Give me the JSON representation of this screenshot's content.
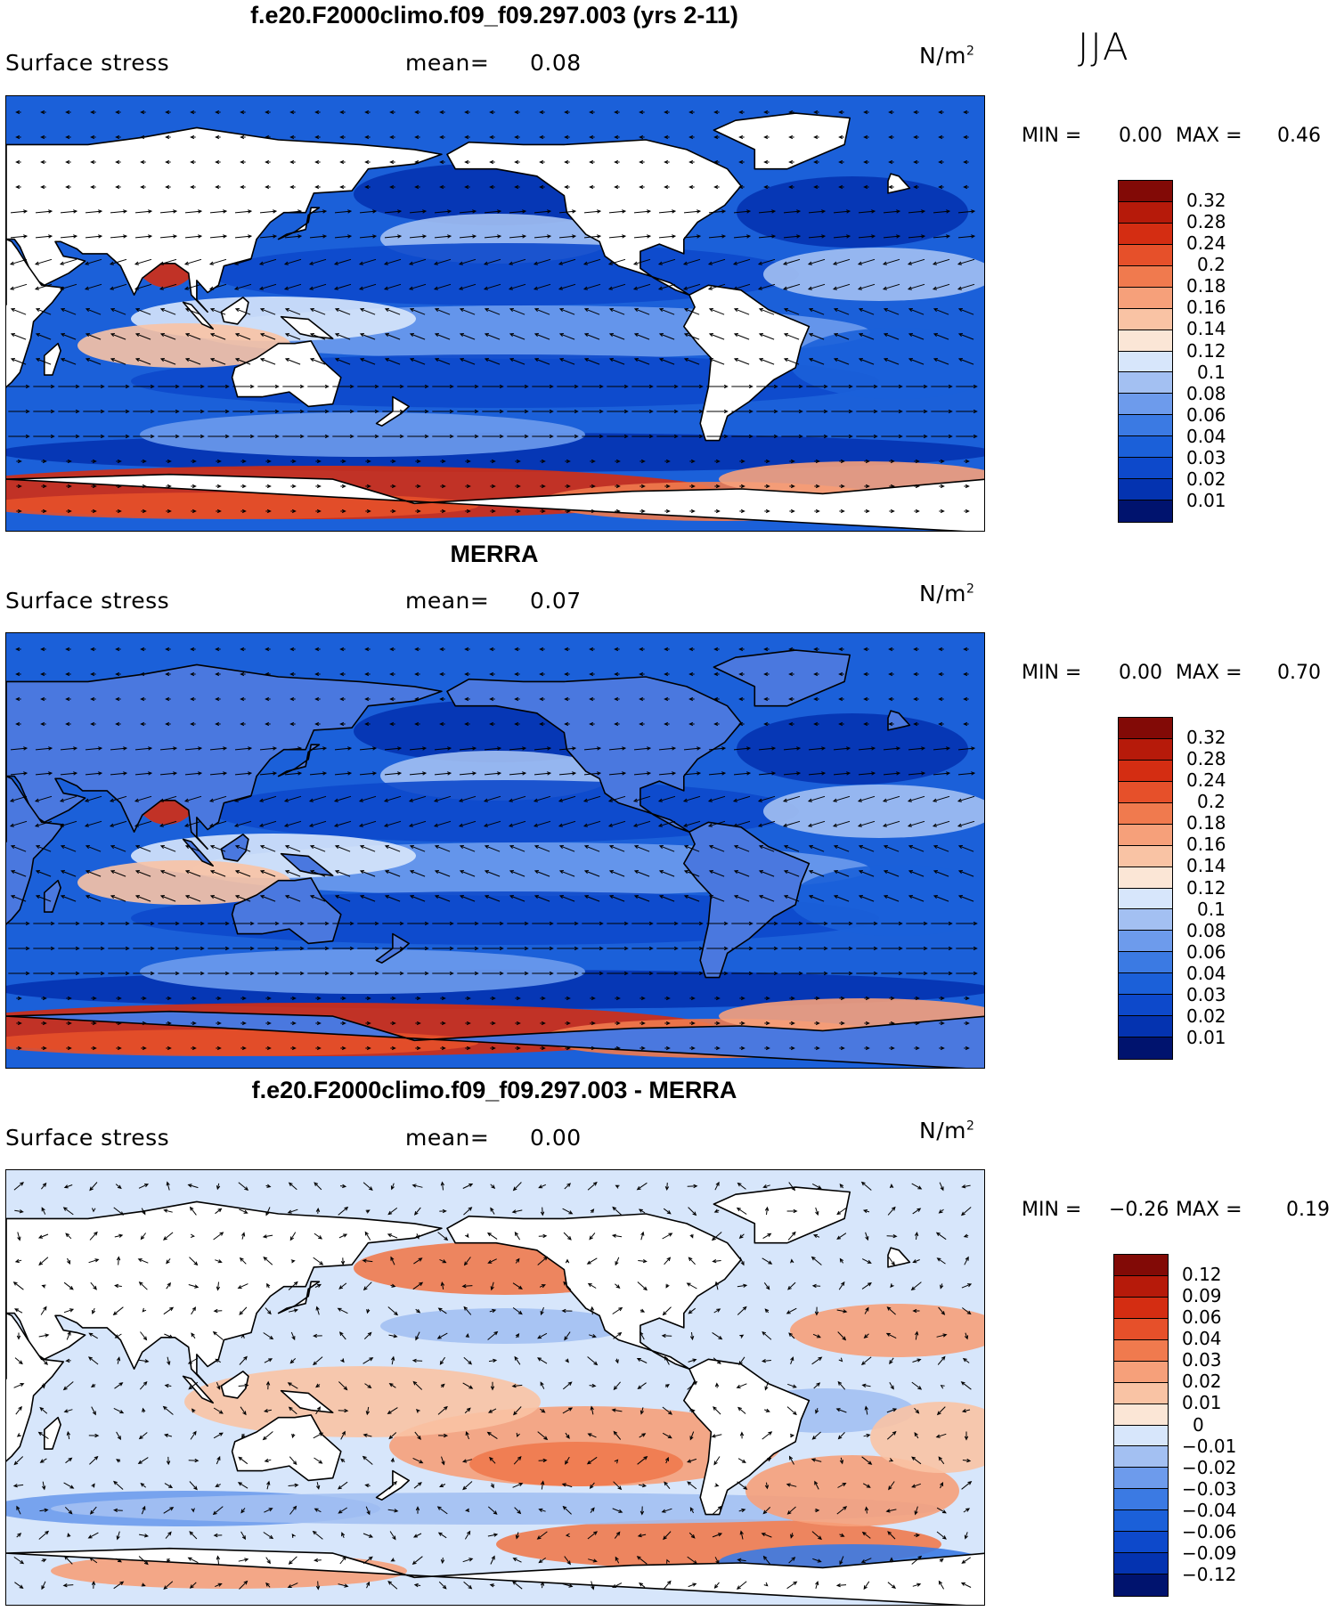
{
  "season": "JJA",
  "colors": {
    "seq": [
      "#00136e",
      "#0433b0",
      "#0d49cb",
      "#1b60d9",
      "#3b7ae3",
      "#6d9bec",
      "#a3c0f2",
      "#d7e6fb",
      "#fbe6d6",
      "#f9c3a4",
      "#f6a07a",
      "#f07a4e",
      "#e6502a",
      "#d42d12",
      "#b61a0a",
      "#820a06"
    ],
    "diff": [
      "#00136e",
      "#0433b0",
      "#0d49cb",
      "#1b60d9",
      "#3b7ae3",
      "#6d9bec",
      "#a3c0f2",
      "#d7e6fb",
      "#fbe6d6",
      "#f9c3a4",
      "#f6a07a",
      "#f07a4e",
      "#e6502a",
      "#d42d12",
      "#b61a0a",
      "#820a06"
    ]
  },
  "panels": [
    {
      "title": "f.e20.F2000climo.f09_f09.297.003 (yrs 2-11)",
      "variable": "Surface stress",
      "mean_label": "mean=",
      "mean_value": "0.08",
      "units_base": "N/m",
      "units_exp": "2",
      "min_label": "MIN =",
      "min_value": "0.00",
      "max_label": "MAX =",
      "max_value": "0.46",
      "scheme": "seq",
      "levels": [
        "0.32",
        "0.28",
        "0.24",
        "0.2",
        "0.18",
        "0.16",
        "0.14",
        "0.12",
        "0.1",
        "0.08",
        "0.06",
        "0.04",
        "0.03",
        "0.02",
        "0.01"
      ]
    },
    {
      "title": "MERRA",
      "variable": "Surface stress",
      "mean_label": "mean=",
      "mean_value": "0.07",
      "units_base": "N/m",
      "units_exp": "2",
      "min_label": "MIN =",
      "min_value": "0.00",
      "max_label": "MAX =",
      "max_value": "0.70",
      "scheme": "seq",
      "levels": [
        "0.32",
        "0.28",
        "0.24",
        "0.2",
        "0.18",
        "0.16",
        "0.14",
        "0.12",
        "0.1",
        "0.08",
        "0.06",
        "0.04",
        "0.03",
        "0.02",
        "0.01"
      ]
    },
    {
      "title": "f.e20.F2000climo.f09_f09.297.003 - MERRA",
      "variable": "Surface stress",
      "mean_label": "mean=",
      "mean_value": "0.00",
      "units_base": "N/m",
      "units_exp": "2",
      "min_label": "MIN =",
      "min_value": "−0.26",
      "max_label": "MAX =",
      "max_value": "0.19",
      "scheme": "diff",
      "levels": [
        "0.12",
        "0.09",
        "0.06",
        "0.04",
        "0.03",
        "0.02",
        "0.01",
        "0",
        "−0.01",
        "−0.02",
        "−0.03",
        "−0.04",
        "−0.06",
        "−0.09",
        "−0.12"
      ]
    }
  ]
}
